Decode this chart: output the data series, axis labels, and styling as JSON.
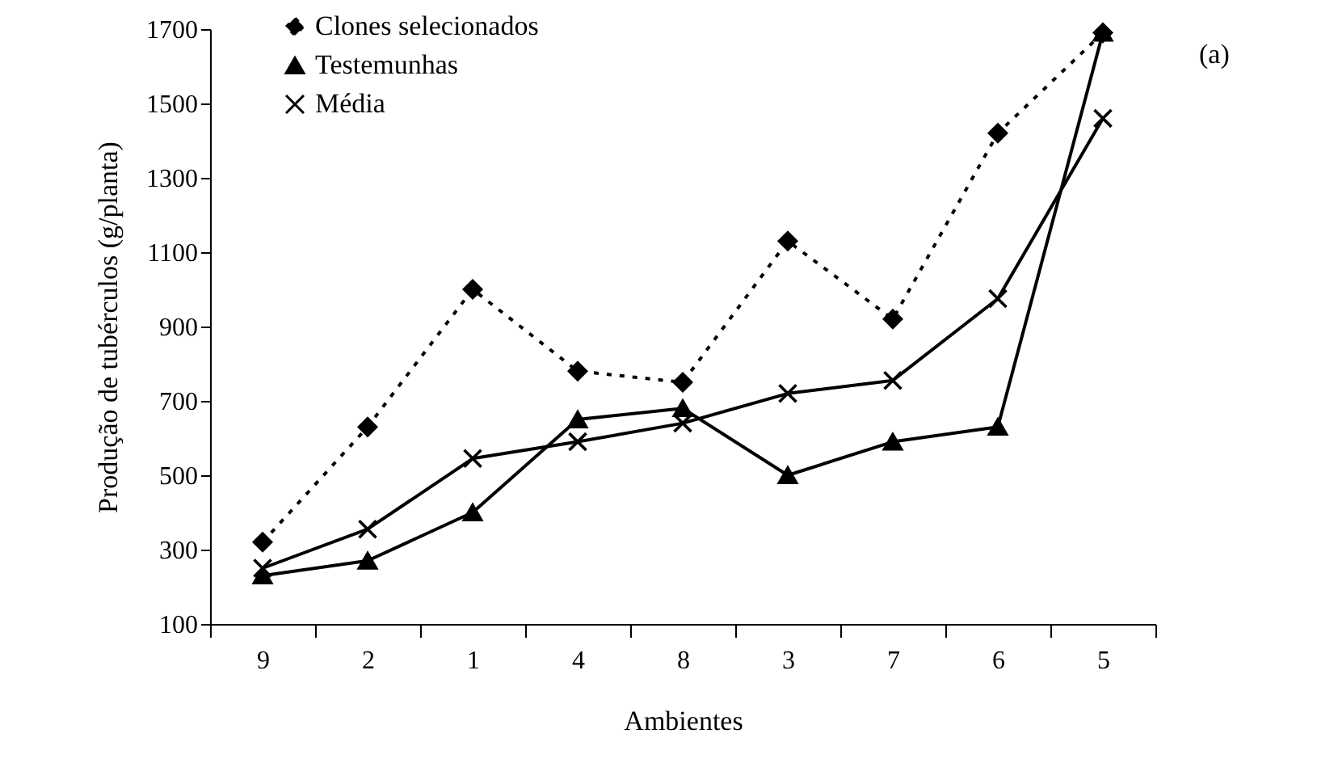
{
  "chart_data": {
    "type": "line",
    "xlabel": "Ambientes",
    "ylabel": "Produção de tubérculos (g/planta)",
    "categories": [
      "9",
      "2",
      "1",
      "4",
      "8",
      "3",
      "7",
      "6",
      "5"
    ],
    "series": [
      {
        "name": "Clones selecionados",
        "color": "#000000",
        "marker": "diamond",
        "line_style": "dotted",
        "values": [
          320,
          630,
          1000,
          780,
          750,
          1130,
          920,
          1420,
          1690
        ]
      },
      {
        "name": "Testemunhas",
        "color": "#000000",
        "marker": "triangle",
        "line_style": "solid",
        "values": [
          230,
          270,
          400,
          650,
          680,
          500,
          590,
          630,
          1690
        ]
      },
      {
        "name": "Média",
        "color": "#000000",
        "marker": "cross",
        "line_style": "solid",
        "values": [
          250,
          355,
          545,
          590,
          640,
          720,
          755,
          975,
          1460
        ]
      }
    ],
    "ylim": [
      100,
      1700
    ],
    "yticks": [
      100,
      300,
      500,
      700,
      900,
      1100,
      1300,
      1500,
      1700
    ],
    "grid": false,
    "legend": "top left",
    "annotations": [
      "(a)"
    ]
  }
}
